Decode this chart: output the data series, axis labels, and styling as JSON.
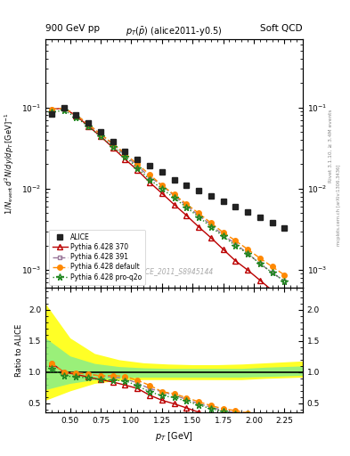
{
  "title_top_left": "900 GeV pp",
  "title_top_right": "Soft QCD",
  "plot_title": "pT($\\bar{p}$) (alice2011-y0.5)",
  "watermark": "ALICE_2011_S8945144",
  "right_label1": "Rivet 3.1.10, ≥ 3.4M events",
  "right_label2": "mcplots.cern.ch [arXiv:1306.3436]",
  "xlabel": "$p_T$ [GeV]",
  "ylabel_main": "$1/N_\\mathrm{event}\\, d^2N/dy/dp_T\\, [\\mathrm{GeV}]^{-1}$",
  "ylabel_ratio": "Ratio to ALICE",
  "xlim": [
    0.3,
    2.4
  ],
  "ylim_main": [
    0.0006,
    0.7
  ],
  "ylim_ratio": [
    0.35,
    2.35
  ],
  "ratio_yticks": [
    0.5,
    1.0,
    1.5,
    2.0
  ],
  "alice_x": [
    0.35,
    0.45,
    0.55,
    0.65,
    0.75,
    0.85,
    0.95,
    1.05,
    1.15,
    1.25,
    1.35,
    1.45,
    1.55,
    1.65,
    1.75,
    1.85,
    1.95,
    2.05,
    2.15,
    2.25
  ],
  "alice_y": [
    0.083,
    0.098,
    0.082,
    0.064,
    0.05,
    0.038,
    0.029,
    0.023,
    0.019,
    0.016,
    0.013,
    0.011,
    0.0095,
    0.0082,
    0.007,
    0.006,
    0.0052,
    0.0044,
    0.0038,
    0.0033
  ],
  "p370_x": [
    0.35,
    0.45,
    0.55,
    0.65,
    0.75,
    0.85,
    0.95,
    1.05,
    1.15,
    1.25,
    1.35,
    1.45,
    1.55,
    1.65,
    1.75,
    1.85,
    1.95,
    2.05,
    2.15,
    2.25
  ],
  "p370_y": [
    0.095,
    0.098,
    0.079,
    0.059,
    0.044,
    0.032,
    0.023,
    0.017,
    0.012,
    0.0088,
    0.0064,
    0.0047,
    0.0034,
    0.0025,
    0.0018,
    0.0013,
    0.001,
    0.00075,
    0.00056,
    0.00042
  ],
  "p391_x": [
    0.35,
    0.45,
    0.55,
    0.65,
    0.75,
    0.85,
    0.95,
    1.05,
    1.15,
    1.25,
    1.35,
    1.45,
    1.55,
    1.65,
    1.75,
    1.85,
    1.95,
    2.05,
    2.15,
    2.25
  ],
  "p391_y": [
    0.095,
    0.098,
    0.081,
    0.062,
    0.047,
    0.035,
    0.026,
    0.019,
    0.014,
    0.011,
    0.0082,
    0.0062,
    0.0047,
    0.0036,
    0.0027,
    0.0021,
    0.0016,
    0.0012,
    0.00093,
    0.00073
  ],
  "pdef_x": [
    0.35,
    0.45,
    0.55,
    0.65,
    0.75,
    0.85,
    0.95,
    1.05,
    1.15,
    1.25,
    1.35,
    1.45,
    1.55,
    1.65,
    1.75,
    1.85,
    1.95,
    2.05,
    2.15,
    2.25
  ],
  "pdef_y": [
    0.095,
    0.098,
    0.081,
    0.062,
    0.047,
    0.036,
    0.027,
    0.02,
    0.015,
    0.011,
    0.0085,
    0.0065,
    0.005,
    0.0038,
    0.0029,
    0.0023,
    0.0018,
    0.0014,
    0.0011,
    0.00087
  ],
  "pq2o_x": [
    0.35,
    0.45,
    0.55,
    0.65,
    0.75,
    0.85,
    0.95,
    1.05,
    1.15,
    1.25,
    1.35,
    1.45,
    1.55,
    1.65,
    1.75,
    1.85,
    1.95,
    2.05,
    2.15,
    2.25
  ],
  "pq2o_y": [
    0.088,
    0.092,
    0.076,
    0.058,
    0.044,
    0.033,
    0.025,
    0.018,
    0.013,
    0.01,
    0.0077,
    0.0059,
    0.0045,
    0.0034,
    0.0026,
    0.002,
    0.0016,
    0.0012,
    0.00093,
    0.00073
  ],
  "band_yellow_x": [
    0.3,
    0.5,
    0.7,
    0.9,
    1.1,
    1.3,
    1.5,
    1.7,
    1.9,
    2.1,
    2.4
  ],
  "band_yellow_lo": [
    0.55,
    0.7,
    0.82,
    0.87,
    0.88,
    0.88,
    0.88,
    0.88,
    0.88,
    0.9,
    0.92
  ],
  "band_yellow_hi": [
    2.1,
    1.55,
    1.3,
    1.2,
    1.15,
    1.13,
    1.12,
    1.12,
    1.13,
    1.15,
    1.18
  ],
  "band_green_x": [
    0.3,
    0.5,
    0.7,
    0.9,
    1.1,
    1.3,
    1.5,
    1.7,
    1.9,
    2.1,
    2.4
  ],
  "band_green_lo": [
    0.72,
    0.82,
    0.88,
    0.91,
    0.92,
    0.92,
    0.92,
    0.92,
    0.92,
    0.93,
    0.95
  ],
  "band_green_hi": [
    1.55,
    1.26,
    1.14,
    1.09,
    1.07,
    1.06,
    1.06,
    1.06,
    1.06,
    1.08,
    1.1
  ],
  "colors": {
    "alice": "#222222",
    "p370": "#bb0000",
    "p391": "#997799",
    "pdef": "#ff8800",
    "pq2o": "#228822"
  },
  "figsize": [
    3.93,
    5.12
  ],
  "dpi": 100
}
